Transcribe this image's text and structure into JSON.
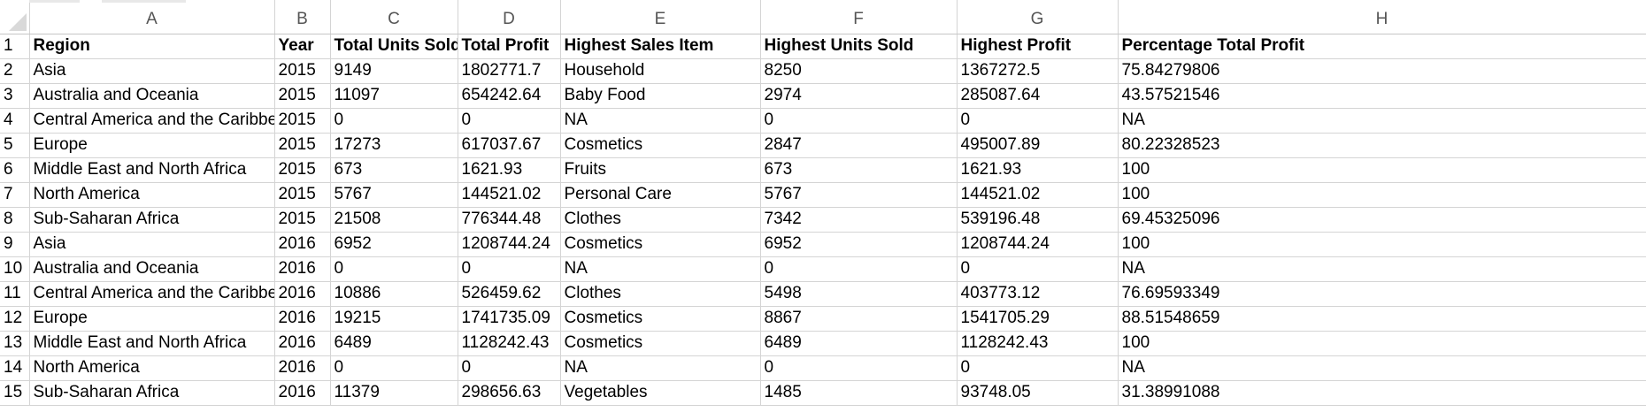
{
  "grid": {
    "column_letters": [
      "A",
      "B",
      "C",
      "D",
      "E",
      "F",
      "G",
      "H"
    ],
    "header_row": {
      "row_number": "1",
      "cells": [
        "Region",
        "Year",
        "Total Units Sold",
        "Total Profit",
        "Highest Sales Item",
        "Highest Units Sold",
        "Highest Profit",
        "Percentage Total Profit"
      ]
    },
    "rows": [
      {
        "row_number": "2",
        "cells": [
          "Asia",
          "2015",
          "9149",
          "1802771.7",
          "Household",
          "8250",
          "1367272.5",
          "75.84279806"
        ]
      },
      {
        "row_number": "3",
        "cells": [
          "Australia and Oceania",
          "2015",
          "11097",
          "654242.64",
          "Baby Food",
          "2974",
          "285087.64",
          "43.57521546"
        ]
      },
      {
        "row_number": "4",
        "cells": [
          "Central America and the Caribbean",
          "2015",
          "0",
          "0",
          "NA",
          "0",
          "0",
          "NA"
        ]
      },
      {
        "row_number": "5",
        "cells": [
          "Europe",
          "2015",
          "17273",
          "617037.67",
          "Cosmetics",
          "2847",
          "495007.89",
          "80.22328523"
        ]
      },
      {
        "row_number": "6",
        "cells": [
          "Middle East and North Africa",
          "2015",
          "673",
          "1621.93",
          "Fruits",
          "673",
          "1621.93",
          "100"
        ]
      },
      {
        "row_number": "7",
        "cells": [
          "North America",
          "2015",
          "5767",
          "144521.02",
          "Personal Care",
          "5767",
          "144521.02",
          "100"
        ]
      },
      {
        "row_number": "8",
        "cells": [
          "Sub-Saharan Africa",
          "2015",
          "21508",
          "776344.48",
          "Clothes",
          "7342",
          "539196.48",
          "69.45325096"
        ]
      },
      {
        "row_number": "9",
        "cells": [
          "Asia",
          "2016",
          "6952",
          "1208744.24",
          "Cosmetics",
          "6952",
          "1208744.24",
          "100"
        ]
      },
      {
        "row_number": "10",
        "cells": [
          "Australia and Oceania",
          "2016",
          "0",
          "0",
          "NA",
          "0",
          "0",
          "NA"
        ]
      },
      {
        "row_number": "11",
        "cells": [
          "Central America and the Caribbean",
          "2016",
          "10886",
          "526459.62",
          "Clothes",
          "5498",
          "403773.12",
          "76.69593349"
        ]
      },
      {
        "row_number": "12",
        "cells": [
          "Europe",
          "2016",
          "19215",
          "1741735.09",
          "Cosmetics",
          "8867",
          "1541705.29",
          "88.51548659"
        ]
      },
      {
        "row_number": "13",
        "cells": [
          "Middle East and North Africa",
          "2016",
          "6489",
          "1128242.43",
          "Cosmetics",
          "6489",
          "1128242.43",
          "100"
        ]
      },
      {
        "row_number": "14",
        "cells": [
          "North America",
          "2016",
          "0",
          "0",
          "NA",
          "0",
          "0",
          "NA"
        ]
      },
      {
        "row_number": "15",
        "cells": [
          "Sub-Saharan Africa",
          "2016",
          "11379",
          "298656.63",
          "Vegetables",
          "1485",
          "93748.05",
          "31.38991088"
        ]
      }
    ]
  },
  "colors": {
    "gridline": "#d4d4d4",
    "header_text": "#555555",
    "cell_text": "#000000"
  }
}
